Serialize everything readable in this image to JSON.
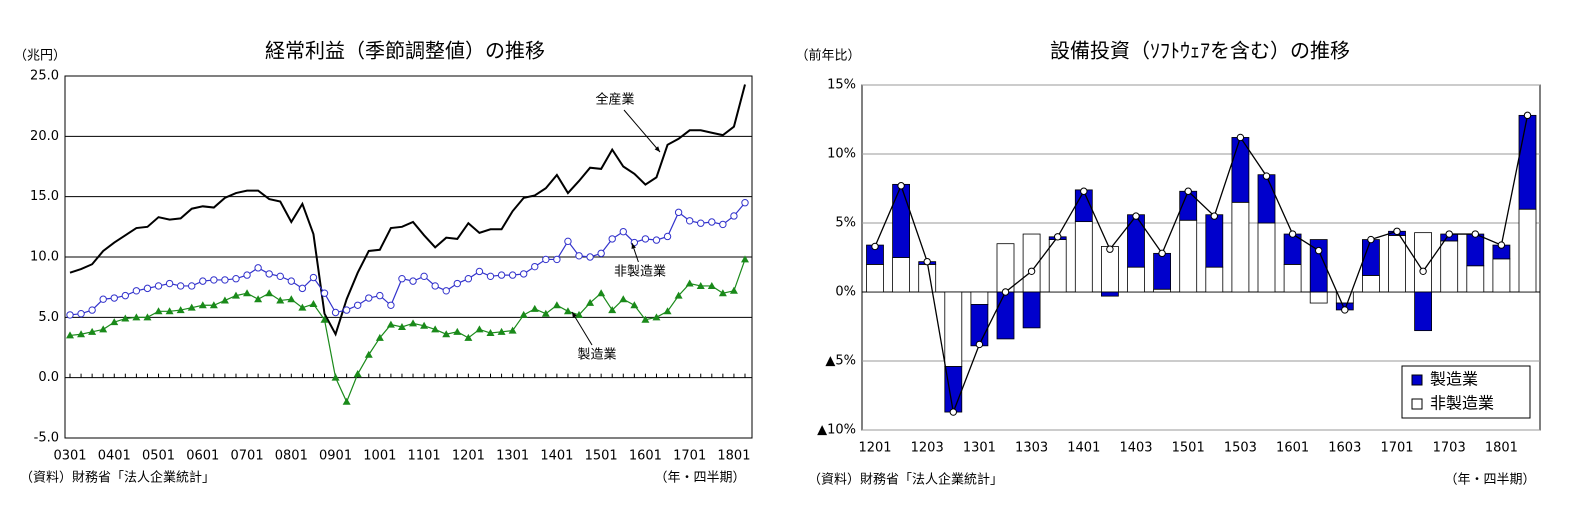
{
  "chart_data": [
    {
      "type": "line",
      "title": "経常利益（季節調整値）の推移",
      "y_unit_label": "（兆円）",
      "x_label": "（年・四半期）",
      "source": "（資料）財務省「法人企業統計」",
      "categories": [
        "0301",
        null,
        null,
        null,
        "0401",
        null,
        null,
        null,
        "0501",
        null,
        null,
        null,
        "0601",
        null,
        null,
        null,
        "0701",
        null,
        null,
        null,
        "0801",
        null,
        null,
        null,
        "0901",
        null,
        null,
        null,
        "1001",
        null,
        null,
        null,
        "1101",
        null,
        null,
        null,
        "1201",
        null,
        null,
        null,
        "1301",
        null,
        null,
        null,
        "1401",
        null,
        null,
        null,
        "1501",
        null,
        null,
        null,
        "1601",
        null,
        null,
        null,
        "1701",
        null,
        null,
        null,
        "1801",
        null
      ],
      "ylim": [
        -5,
        25
      ],
      "yticks": [
        {
          "value": -5,
          "label": "-5.0"
        },
        {
          "value": 0,
          "label": "0.0"
        },
        {
          "value": 5,
          "label": "5.0"
        },
        {
          "value": 10,
          "label": "10.0"
        },
        {
          "value": 15,
          "label": "15.0"
        },
        {
          "value": 20,
          "label": "20.0"
        },
        {
          "value": 25,
          "label": "25.0"
        }
      ],
      "grid": true,
      "grid_color": "#000000",
      "series": [
        {
          "name": "全産業",
          "color": "#000000",
          "marker": "none",
          "values": [
            8.7,
            9.0,
            9.4,
            10.5,
            11.2,
            11.8,
            12.4,
            12.5,
            13.3,
            13.1,
            13.2,
            14.0,
            14.2,
            14.1,
            14.9,
            15.3,
            15.5,
            15.5,
            14.8,
            14.6,
            12.9,
            14.4,
            11.9,
            5.3,
            3.6,
            6.5,
            8.7,
            10.5,
            10.6,
            12.4,
            12.5,
            12.9,
            11.8,
            10.8,
            11.6,
            11.5,
            12.8,
            12.0,
            12.3,
            12.3,
            13.8,
            14.9,
            15.1,
            15.7,
            16.8,
            15.3,
            16.3,
            17.4,
            17.3,
            18.9,
            17.5,
            16.9,
            16.0,
            16.6,
            19.3,
            19.8,
            20.5,
            20.5,
            20.3,
            20.1,
            20.8,
            24.3
          ]
        },
        {
          "name": "非製造業",
          "color": "#3333cc",
          "marker": "circle",
          "values": [
            5.2,
            5.3,
            5.6,
            6.5,
            6.6,
            6.8,
            7.2,
            7.4,
            7.6,
            7.8,
            7.6,
            7.6,
            8.0,
            8.1,
            8.1,
            8.2,
            8.5,
            9.1,
            8.6,
            8.4,
            8.0,
            7.4,
            8.3,
            7.0,
            5.4,
            5.6,
            6.0,
            6.6,
            6.8,
            6.0,
            8.2,
            8.0,
            8.4,
            7.6,
            7.2,
            7.8,
            8.2,
            8.8,
            8.4,
            8.5,
            8.5,
            8.6,
            9.2,
            9.8,
            9.8,
            11.3,
            10.1,
            10.0,
            10.3,
            11.5,
            12.1,
            11.2,
            11.5,
            11.4,
            11.7,
            13.7,
            13.0,
            12.8,
            12.9,
            12.7,
            13.4,
            14.5
          ]
        },
        {
          "name": "製造業",
          "color": "#1a8a1a",
          "marker": "triangle",
          "values": [
            3.5,
            3.6,
            3.8,
            4.0,
            4.6,
            4.9,
            5.0,
            5.0,
            5.5,
            5.5,
            5.6,
            5.8,
            6.0,
            6.0,
            6.4,
            6.8,
            7.0,
            6.5,
            7.0,
            6.4,
            6.5,
            5.8,
            6.1,
            4.8,
            0.0,
            -2.0,
            0.3,
            1.9,
            3.3,
            4.4,
            4.2,
            4.5,
            4.3,
            4.0,
            3.6,
            3.8,
            3.3,
            4.0,
            3.7,
            3.8,
            3.9,
            5.2,
            5.7,
            5.3,
            6.0,
            5.5,
            5.2,
            6.2,
            7.0,
            5.6,
            6.5,
            6.0,
            4.8,
            5.0,
            5.5,
            6.8,
            7.8,
            7.6,
            7.6,
            7.0,
            7.2,
            9.8
          ]
        }
      ]
    },
    {
      "type": "bar",
      "title": "設備投資（ｿﾌﾄｳｪｱを含む）の推移",
      "y_unit_label": "（前年比）",
      "x_label": "（年・四半期）",
      "source": "（資料）財務省「法人企業統計」",
      "categories": [
        "1201",
        null,
        "1203",
        null,
        "1301",
        null,
        "1303",
        null,
        "1401",
        null,
        "1403",
        null,
        "1501",
        null,
        "1503",
        null,
        "1601",
        null,
        "1603",
        null,
        "1701",
        null,
        "1703",
        null,
        "1801",
        null
      ],
      "ylim": [
        -10,
        15
      ],
      "yticks": [
        {
          "value": -10,
          "label": "▲10%"
        },
        {
          "value": -5,
          "label": "▲5%"
        },
        {
          "value": 0,
          "label": "0%"
        },
        {
          "value": 5,
          "label": "5%"
        },
        {
          "value": 10,
          "label": "10%"
        },
        {
          "value": 15,
          "label": "15%"
        }
      ],
      "grid": true,
      "grid_color": "#999999",
      "legend": "lower right",
      "series": [
        {
          "name": "非製造業",
          "color": "#ffffff",
          "values": [
            2.0,
            2.5,
            2.0,
            -5.4,
            -0.9,
            3.5,
            4.2,
            3.8,
            5.1,
            3.3,
            1.8,
            0.2,
            5.2,
            1.8,
            6.5,
            5.0,
            2.0,
            -0.8,
            -0.8,
            1.2,
            4.1,
            4.3,
            3.7,
            1.9,
            2.4,
            6.0
          ]
        },
        {
          "name": "製造業",
          "color": "#0000cc",
          "values": [
            1.4,
            5.3,
            0.2,
            -3.3,
            -3.0,
            -3.4,
            -2.6,
            0.2,
            2.3,
            -0.3,
            3.8,
            2.6,
            2.1,
            3.8,
            4.7,
            3.5,
            2.2,
            3.8,
            -0.5,
            2.6,
            0.3,
            -2.8,
            0.5,
            2.3,
            1.0,
            6.8
          ]
        }
      ],
      "line_color": "#000000",
      "line_values": [
        3.3,
        7.7,
        2.2,
        -8.7,
        -3.8,
        0.0,
        1.5,
        4.0,
        7.3,
        3.1,
        5.5,
        2.8,
        7.3,
        5.5,
        11.2,
        8.4,
        4.2,
        3.0,
        -1.3,
        3.8,
        4.4,
        1.5,
        4.2,
        4.2,
        3.4,
        12.8
      ]
    }
  ]
}
